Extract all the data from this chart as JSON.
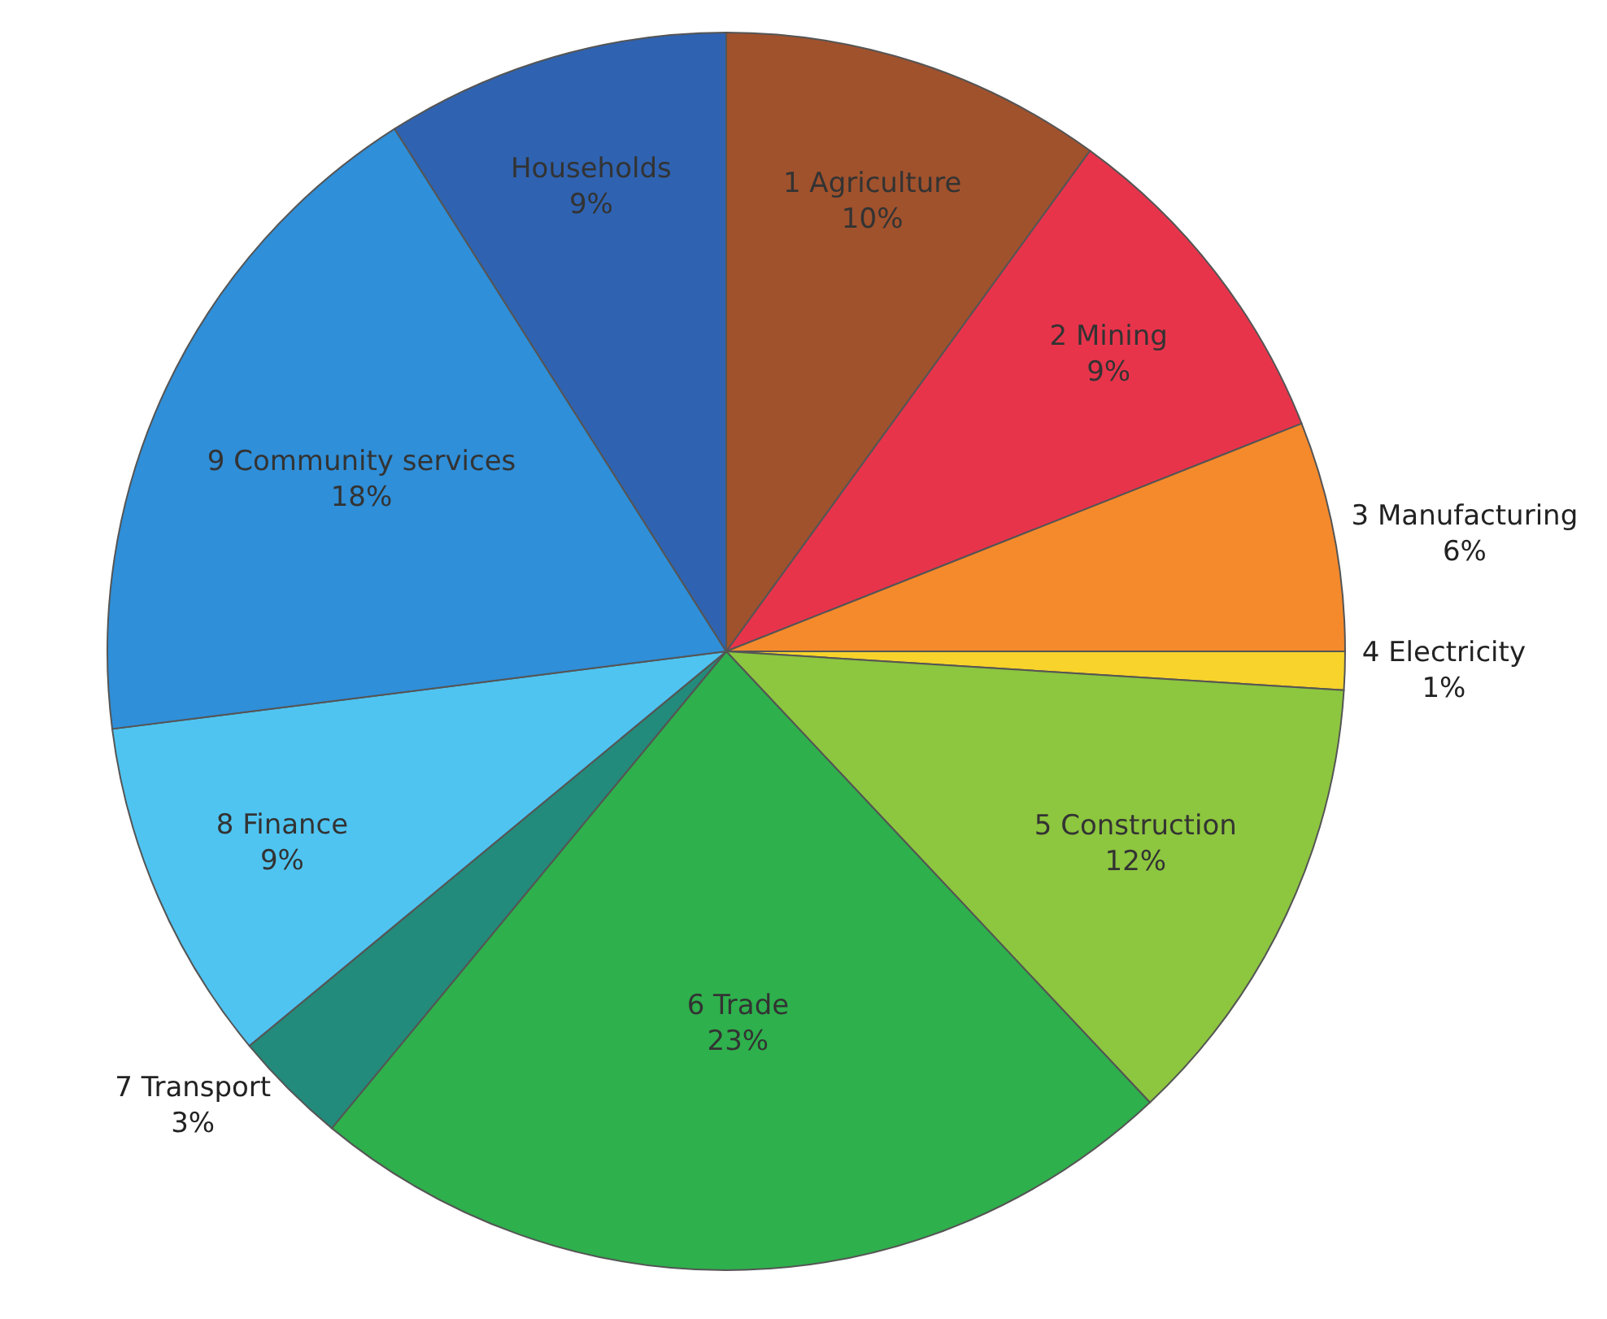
{
  "chart_data": {
    "type": "pie",
    "categories": [
      "1 Agriculture",
      "2 Mining",
      "3 Manufacturing",
      "4 Electricity",
      "5 Construction",
      "6 Trade",
      "7 Transport",
      "8 Finance",
      "9 Community services",
      "Households"
    ],
    "values": [
      10,
      9,
      6,
      1,
      12,
      23,
      3,
      9,
      18,
      9
    ],
    "value_labels": [
      "10%",
      "9%",
      "6%",
      "1%",
      "12%",
      "23%",
      "3%",
      "9%",
      "18%",
      "9%"
    ],
    "colors": [
      "#a0522d",
      "#e8344b",
      "#f58a2c",
      "#f7d32b",
      "#8dc63f",
      "#2eb04c",
      "#238b7b",
      "#4fc4f1",
      "#2f8fd9",
      "#2f63b1"
    ],
    "legend": false
  }
}
